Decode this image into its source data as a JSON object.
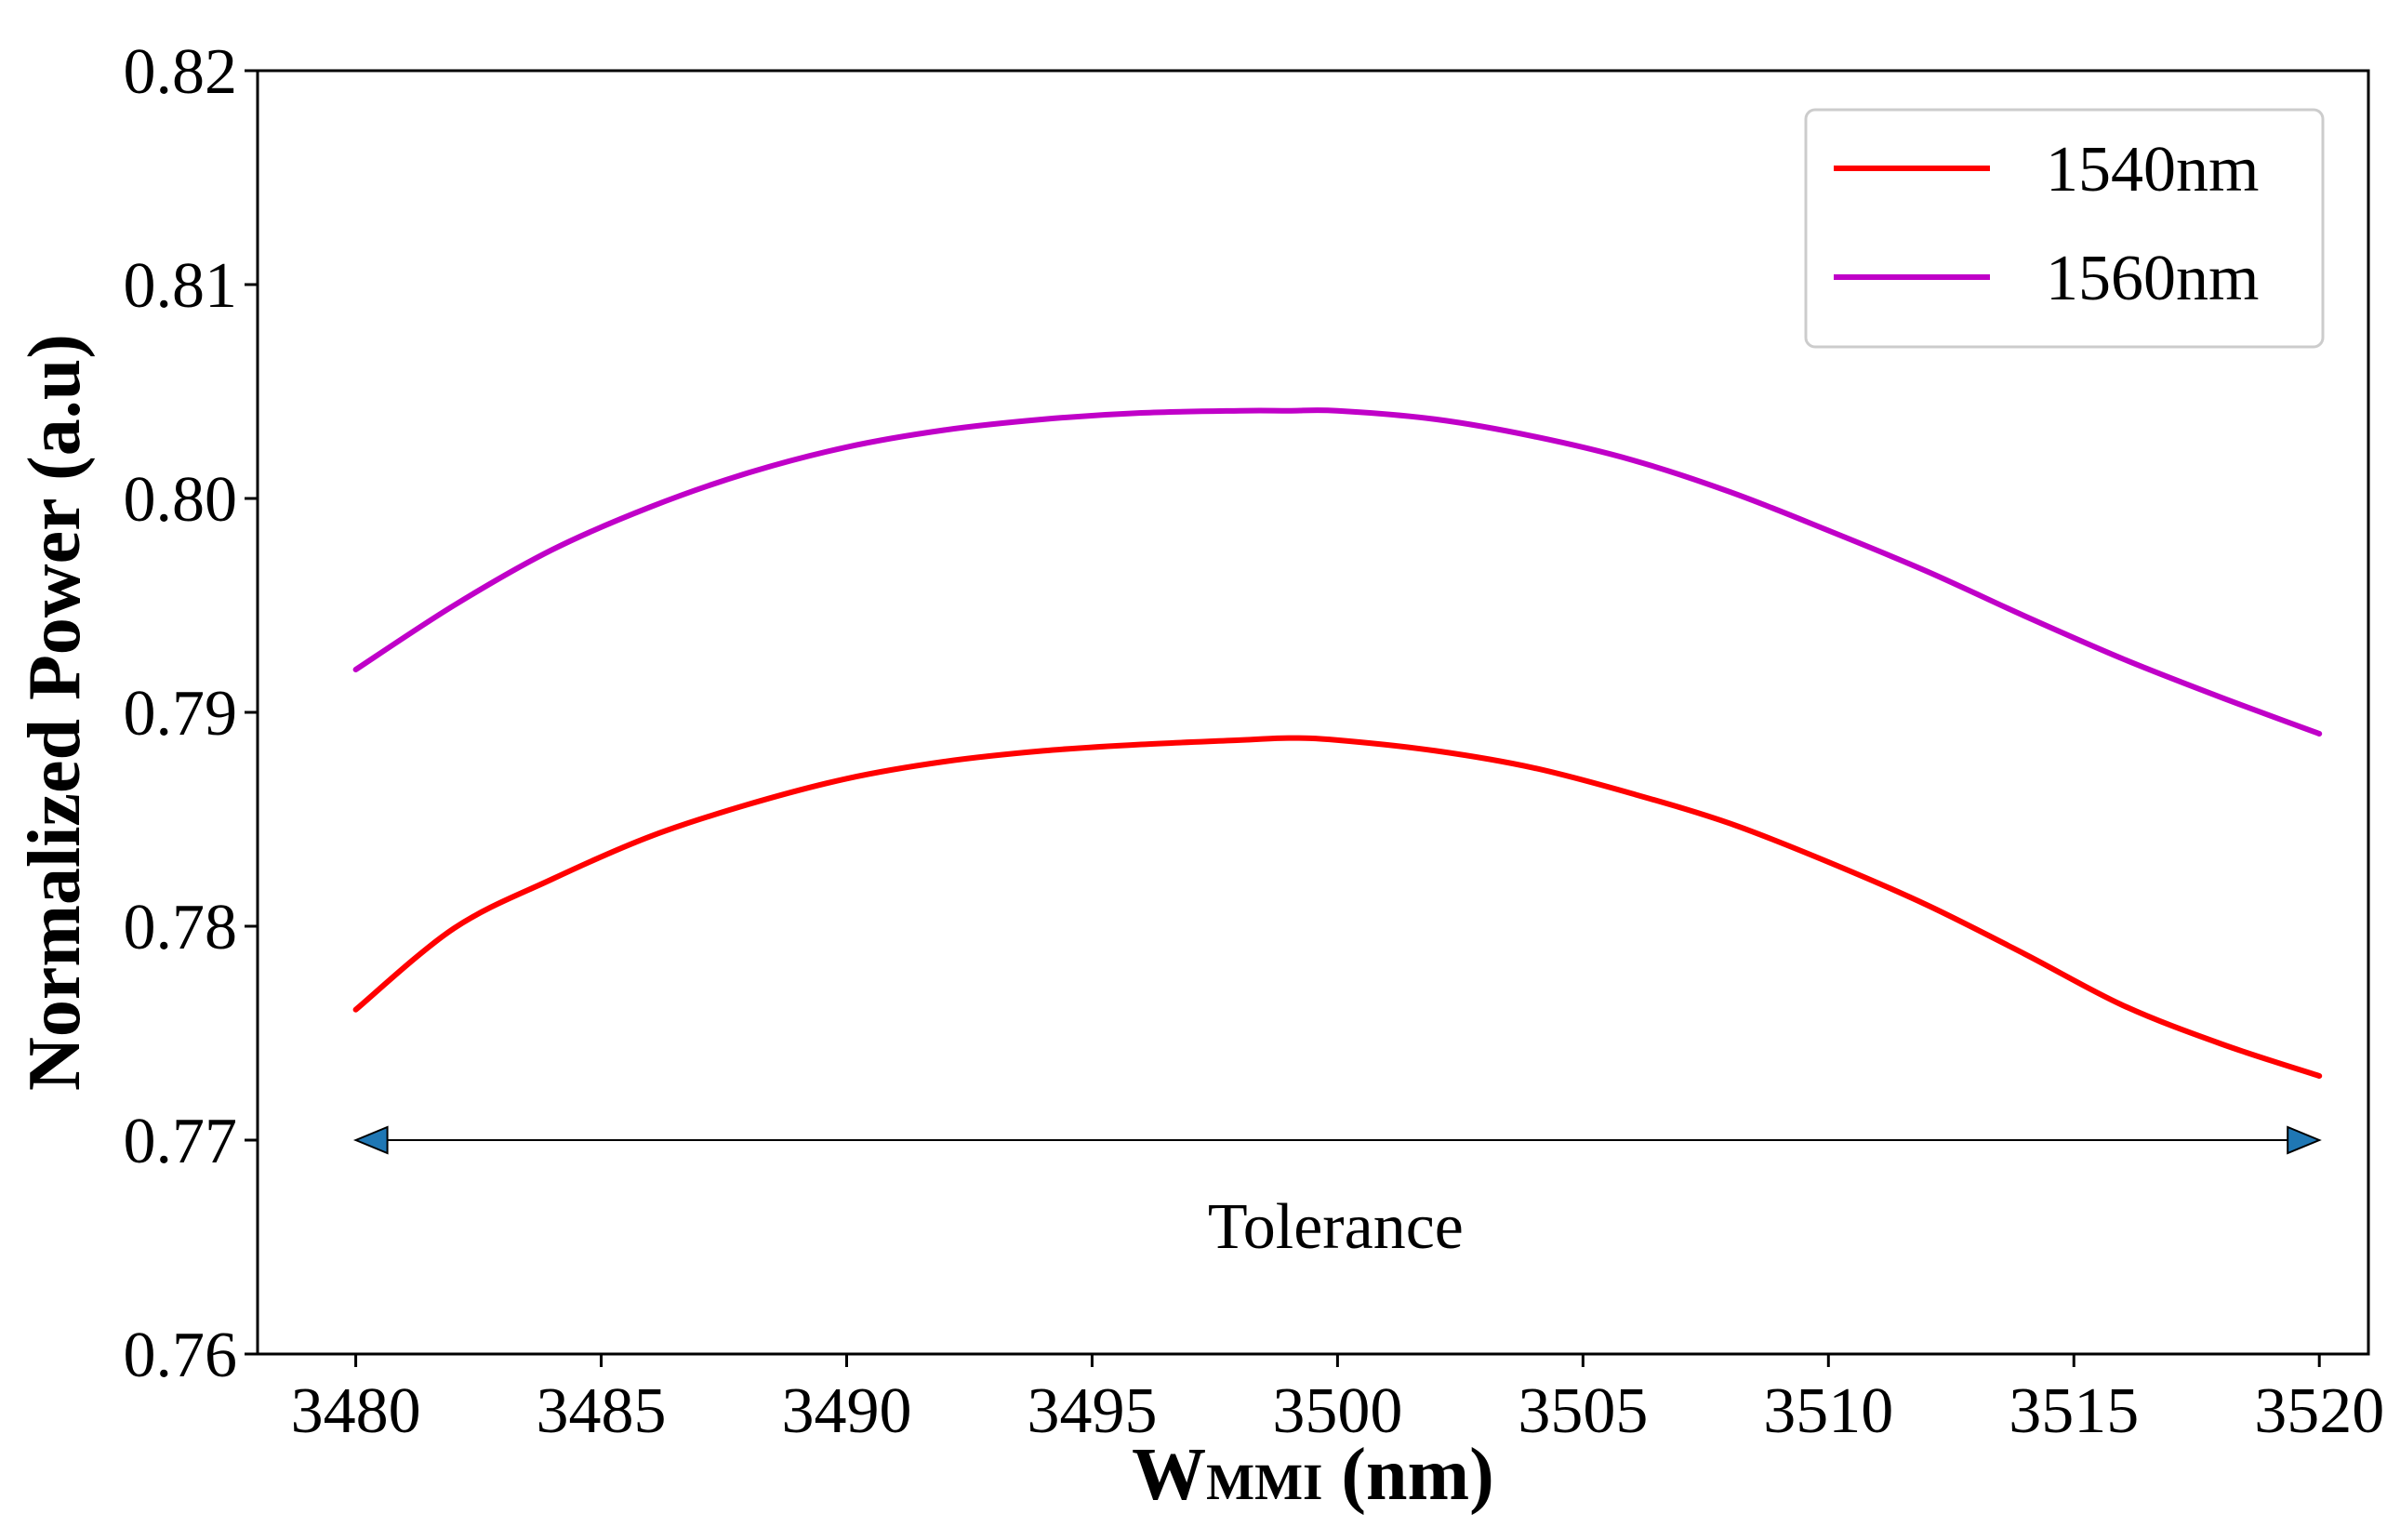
{
  "chart_data": {
    "type": "line",
    "title": "",
    "xlabel_main": "W",
    "xlabel_sub": "MMI",
    "xlabel_unit": " (nm)",
    "ylabel": "Normalized Power (a.u)",
    "xlim": [
      3478,
      3521
    ],
    "ylim": [
      0.76,
      0.82
    ],
    "xticks": [
      3480,
      3485,
      3490,
      3495,
      3500,
      3505,
      3510,
      3515,
      3520
    ],
    "yticks": [
      "0.76",
      "0.77",
      "0.78",
      "0.79",
      "0.80",
      "0.81",
      "0.82"
    ],
    "grid": false,
    "legend_position": "top-right",
    "x": [
      3480,
      3482,
      3484,
      3486,
      3488,
      3490,
      3492,
      3494,
      3496,
      3498,
      3499,
      3500,
      3502,
      3504,
      3506,
      3508,
      3510,
      3512,
      3514,
      3516,
      3518,
      3520
    ],
    "series": [
      {
        "name": "1540nm",
        "color": "#ff0000",
        "values": [
          0.7761,
          0.7799,
          0.7822,
          0.7842,
          0.7857,
          0.7869,
          0.7877,
          0.7882,
          0.7885,
          0.7887,
          0.7888,
          0.7887,
          0.7882,
          0.7874,
          0.7862,
          0.7848,
          0.783,
          0.781,
          0.7787,
          0.7763,
          0.7745,
          0.773
        ]
      },
      {
        "name": "1560nm",
        "color": "#c000c8",
        "values": [
          0.792,
          0.795,
          0.7976,
          0.7996,
          0.8012,
          0.8024,
          0.8032,
          0.8037,
          0.804,
          0.8041,
          0.8041,
          0.8041,
          0.8037,
          0.8029,
          0.8018,
          0.8003,
          0.7985,
          0.7966,
          0.7945,
          0.7925,
          0.7907,
          0.789
        ]
      }
    ],
    "annotation": {
      "text": "Tolerance",
      "arrow_x": [
        3480,
        3520
      ],
      "arrow_y": 0.77,
      "arrow_color": "#1f77b4"
    }
  }
}
